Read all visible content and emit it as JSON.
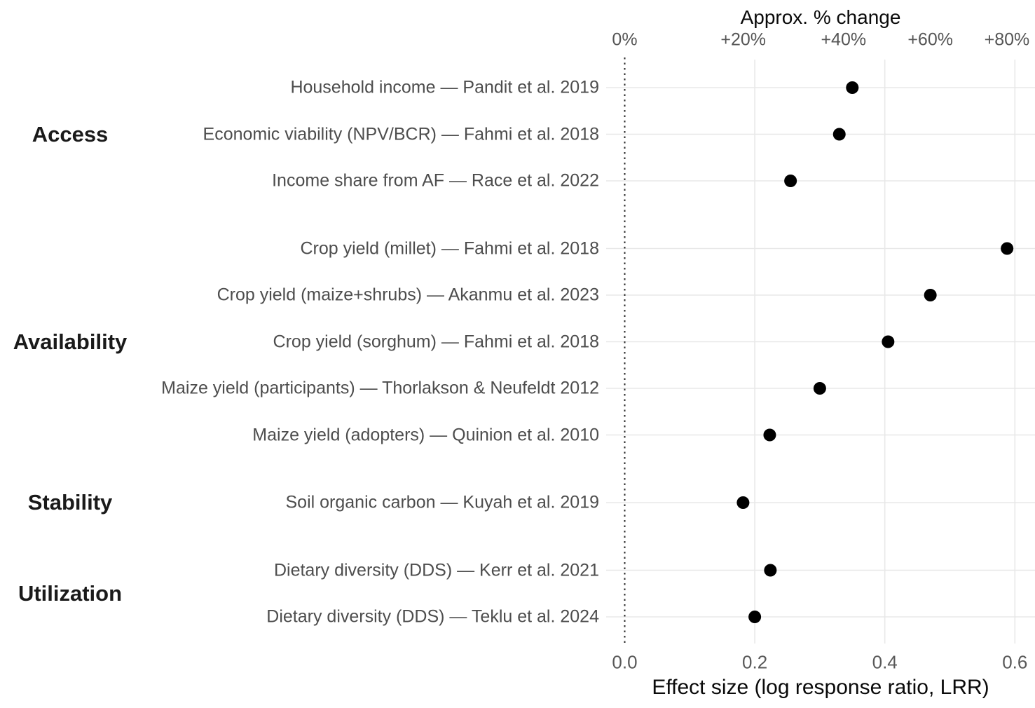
{
  "colors": {
    "background": "#ffffff",
    "point": "#000000",
    "gridline": "#e8e8e8",
    "zero_line": "#2b2b2b",
    "row_label": "#4d4d4d",
    "tick_label": "#595959",
    "category_label": "#1a1a1a",
    "axis_title": "#0a0a0a"
  },
  "chart_data": {
    "type": "scatter",
    "subtype": "horizontal-dot-forest-plot",
    "top_axis": {
      "title": "Approx. % change",
      "tick_labels": [
        "0%",
        "+20%",
        "+40%",
        "+60%",
        "+80%"
      ],
      "tick_positions_lrr": [
        0,
        0.1823,
        0.3365,
        0.47,
        0.5878
      ],
      "scale_note": "percent change = exp(LRR) - 1"
    },
    "bottom_axis": {
      "title": "Effect size (log response ratio, LRR)",
      "ticks": [
        0.0,
        0.2,
        0.4,
        0.6
      ],
      "tick_labels": [
        "0.0",
        "0.2",
        "0.4",
        "0.6"
      ],
      "range": [
        -0.031,
        0.632
      ]
    },
    "zero_reference_line_lrr": 0,
    "grid": {
      "vertical_gridlines_lrr": [
        0.2,
        0.4,
        0.6
      ],
      "horizontal_gridlines": "one per row",
      "grid_on": true
    },
    "legend": "none",
    "groups": [
      {
        "name": "Access",
        "rows": [
          {
            "label": "Household income — Pandit et al. 2019",
            "lrr": 0.35
          },
          {
            "label": "Economic viability (NPV/BCR) — Fahmi et al. 2018",
            "lrr": 0.33
          },
          {
            "label": "Income share from AF — Race et al. 2022",
            "lrr": 0.255
          }
        ]
      },
      {
        "name": "Availability",
        "rows": [
          {
            "label": "Crop yield (millet) — Fahmi et al. 2018",
            "lrr": 0.588
          },
          {
            "label": "Crop yield (maize+shrubs) — Akanmu et al. 2023",
            "lrr": 0.47
          },
          {
            "label": "Crop yield (sorghum) — Fahmi et al. 2018",
            "lrr": 0.405
          },
          {
            "label": "Maize yield (participants) — Thorlakson & Neufeldt 2012",
            "lrr": 0.3
          },
          {
            "label": "Maize yield (adopters) — Quinion et al. 2010",
            "lrr": 0.223
          }
        ]
      },
      {
        "name": "Stability",
        "rows": [
          {
            "label": "Soil organic carbon — Kuyah et al. 2019",
            "lrr": 0.182
          }
        ]
      },
      {
        "name": "Utilization",
        "rows": [
          {
            "label": "Dietary diversity (DDS) — Kerr et al. 2021",
            "lrr": 0.224
          },
          {
            "label": "Dietary diversity (DDS) — Teklu et al. 2024",
            "lrr": 0.2
          }
        ]
      }
    ]
  }
}
